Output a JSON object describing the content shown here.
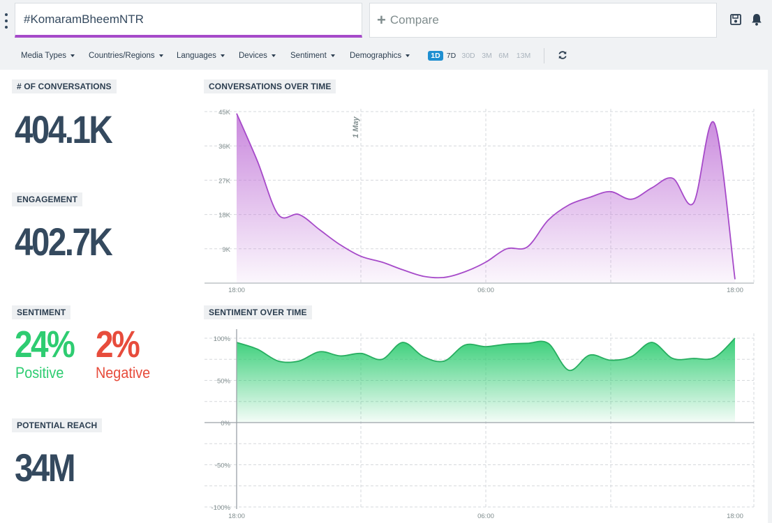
{
  "search": {
    "value": "#KomaramBheemNTR"
  },
  "compare": {
    "label": "Compare"
  },
  "toolbar": {
    "save_icon": "save-icon",
    "bell_icon": "bell-icon"
  },
  "filters": [
    "Media Types",
    "Countries/Regions",
    "Languages",
    "Devices",
    "Sentiment",
    "Demographics"
  ],
  "ranges": [
    "1D",
    "7D",
    "30D",
    "3M",
    "6M",
    "13M"
  ],
  "active_range": "1D",
  "metrics": {
    "conversations": {
      "label": "# OF CONVERSATIONS",
      "value": "404.1K"
    },
    "engagement": {
      "label": "ENGAGEMENT",
      "value": "402.7K"
    },
    "sentiment": {
      "label": "SENTIMENT",
      "positive_value": "24%",
      "positive_label": "Positive",
      "negative_value": "2%",
      "negative_label": "Negative"
    },
    "reach": {
      "label": "POTENTIAL REACH",
      "value": "34M"
    }
  },
  "colors": {
    "accent": "#a64ac9",
    "positive": "#2ecc71",
    "negative": "#e74c3c",
    "active_range": "#1f8fd1"
  },
  "chart_data": [
    {
      "type": "area",
      "title": "CONVERSATIONS OVER TIME",
      "x_ticks": [
        "18:00",
        "06:00",
        "18:00"
      ],
      "y_ticks": [
        "9K",
        "18K",
        "27K",
        "36K",
        "45K"
      ],
      "ylim": [
        0,
        45000
      ],
      "annotation": "1 May",
      "grid": true,
      "x": [
        "18:00",
        "19:00",
        "20:00",
        "21:00",
        "22:00",
        "23:00",
        "00:00",
        "01:00",
        "02:00",
        "03:00",
        "04:00",
        "05:00",
        "06:00",
        "07:00",
        "08:00",
        "09:00",
        "10:00",
        "11:00",
        "12:00",
        "13:00",
        "14:00",
        "15:00",
        "16:00",
        "17:00",
        "18:00"
      ],
      "values": [
        44500,
        32000,
        18000,
        18000,
        14000,
        10000,
        7000,
        5500,
        3500,
        1800,
        1500,
        3000,
        5500,
        9000,
        9500,
        16500,
        20500,
        22500,
        24000,
        22000,
        25000,
        27500,
        21000,
        42000,
        1000
      ]
    },
    {
      "type": "area",
      "title": "SENTIMENT OVER TIME",
      "x_ticks": [
        "18:00",
        "06:00",
        "18:00"
      ],
      "y_ticks": [
        "100%",
        "50%",
        "0%",
        "-50%",
        "-100%"
      ],
      "ylim": [
        -100,
        100
      ],
      "grid": true,
      "x": [
        "18:00",
        "19:00",
        "20:00",
        "21:00",
        "22:00",
        "23:00",
        "00:00",
        "01:00",
        "02:00",
        "03:00",
        "04:00",
        "05:00",
        "06:00",
        "07:00",
        "08:00",
        "09:00",
        "10:00",
        "11:00",
        "12:00",
        "13:00",
        "14:00",
        "15:00",
        "16:00",
        "17:00",
        "18:00"
      ],
      "values": [
        95,
        87,
        73,
        73,
        84,
        79,
        82,
        75,
        95,
        78,
        73,
        92,
        90,
        93,
        94,
        94,
        62,
        80,
        74,
        78,
        95,
        76,
        76,
        77,
        100
      ]
    }
  ]
}
